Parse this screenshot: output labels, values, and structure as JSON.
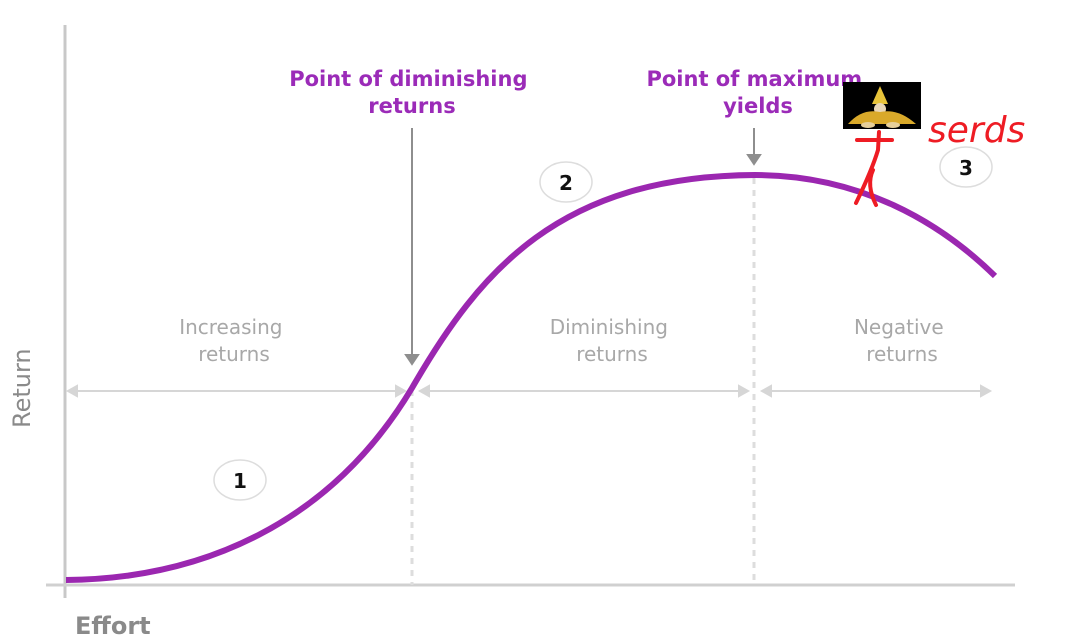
{
  "diagram": {
    "x_axis_label": "Effort",
    "y_axis_label": "Return",
    "annotations": {
      "diminishing_point": [
        "Point of diminishing",
        "returns"
      ],
      "maximum_yield": [
        "Point of maximum",
        "yields"
      ]
    },
    "zones": [
      {
        "number": "1",
        "label": [
          "Increasing",
          "returns"
        ]
      },
      {
        "number": "2",
        "label": [
          "Diminishing",
          "returns"
        ]
      },
      {
        "number": "3",
        "label": [
          "Negative",
          "returns"
        ]
      }
    ],
    "colors": {
      "curve": "#9b27b0",
      "annotation": "#9b2bb8",
      "axis": "#c8c8c8",
      "zone_text": "#a8a8a8",
      "scribble": "#ee1c24"
    }
  },
  "overlay": {
    "handwritten_text": "serds",
    "sticker": "clown-figure-image"
  }
}
